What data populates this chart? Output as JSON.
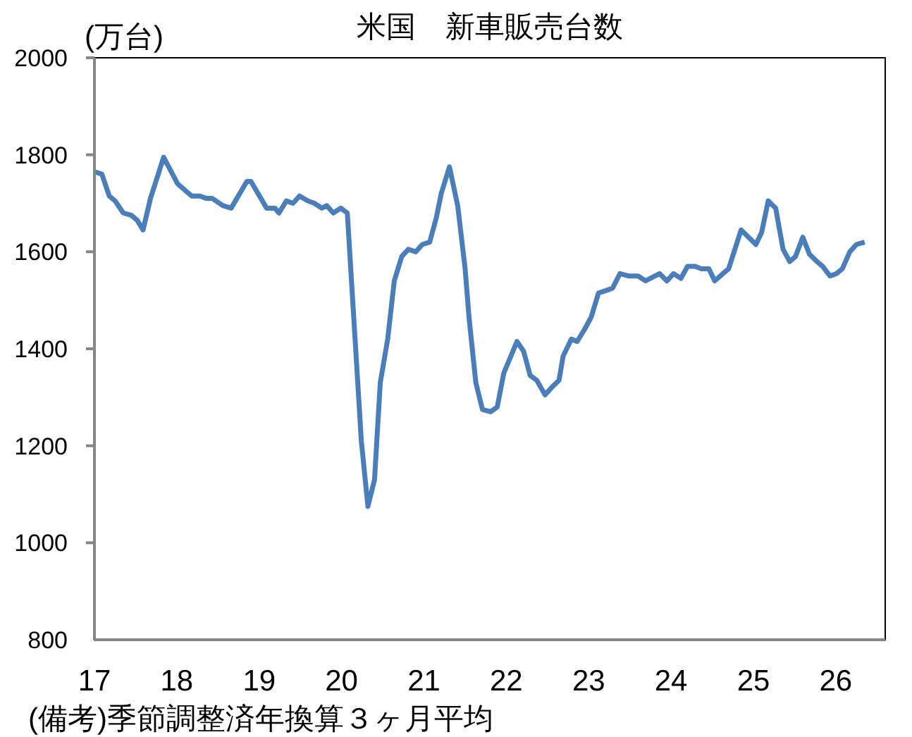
{
  "chart_data": {
    "type": "line",
    "title": "米国　新車販売台数",
    "ylabel": "(万台)",
    "x": [
      17.0,
      17.09,
      17.18,
      17.25,
      17.35,
      17.45,
      17.52,
      17.59,
      17.68,
      17.84,
      18.01,
      18.18,
      18.28,
      18.36,
      18.43,
      18.56,
      18.66,
      18.85,
      18.9,
      19.09,
      19.19,
      19.24,
      19.33,
      19.41,
      19.49,
      19.59,
      19.67,
      19.76,
      19.82,
      19.9,
      19.99,
      20.07,
      20.24,
      20.32,
      20.4,
      20.47,
      20.56,
      20.64,
      20.73,
      20.81,
      20.9,
      20.98,
      21.07,
      21.15,
      21.21,
      21.31,
      21.41,
      21.5,
      21.55,
      21.63,
      21.71,
      21.81,
      21.89,
      21.97,
      22.13,
      22.21,
      22.29,
      22.37,
      22.47,
      22.55,
      22.64,
      22.69,
      22.79,
      22.86,
      22.95,
      23.03,
      23.12,
      23.21,
      23.29,
      23.38,
      23.49,
      23.6,
      23.69,
      23.86,
      23.95,
      24.03,
      24.12,
      24.2,
      24.29,
      24.37,
      24.46,
      24.53,
      24.63,
      24.7,
      24.85,
      25.03,
      25.1,
      25.18,
      25.27,
      25.36,
      25.44,
      25.51,
      25.6,
      25.68,
      25.77,
      25.84,
      25.93,
      26.01,
      26.08,
      26.17,
      26.25,
      26.35
    ],
    "series": [
      {
        "color": "#4a7ebb",
        "values": [
          1765,
          1760,
          1715,
          1705,
          1680,
          1675,
          1665,
          1645,
          1710,
          1795,
          1740,
          1715,
          1715,
          1710,
          1710,
          1695,
          1690,
          1745,
          1745,
          1690,
          1690,
          1680,
          1705,
          1700,
          1715,
          1705,
          1700,
          1690,
          1695,
          1680,
          1690,
          1680,
          1210,
          1075,
          1130,
          1330,
          1420,
          1540,
          1590,
          1605,
          1600,
          1615,
          1620,
          1670,
          1720,
          1775,
          1695,
          1565,
          1460,
          1330,
          1275,
          1270,
          1280,
          1350,
          1415,
          1395,
          1345,
          1335,
          1305,
          1320,
          1335,
          1385,
          1420,
          1415,
          1440,
          1465,
          1515,
          1520,
          1525,
          1555,
          1550,
          1550,
          1540,
          1555,
          1540,
          1555,
          1545,
          1570,
          1570,
          1565,
          1565,
          1540,
          1555,
          1565,
          1645,
          1615,
          1640,
          1705,
          1690,
          1605,
          1580,
          1590,
          1630,
          1595,
          1580,
          1570,
          1550,
          1555,
          1565,
          1600,
          1615,
          1620
        ]
      }
    ],
    "xlim": [
      17,
      26.6
    ],
    "xticks": [
      17,
      18,
      19,
      20,
      21,
      22,
      23,
      24,
      25,
      26
    ],
    "ylim": [
      800,
      2000
    ],
    "yticks": [
      800,
      1000,
      1200,
      1400,
      1600,
      1800,
      2000
    ],
    "grid": false,
    "marker": "none",
    "line_style": "solid",
    "annotations": [
      "(備考)季節調整済年換算３ヶ月平均"
    ]
  }
}
